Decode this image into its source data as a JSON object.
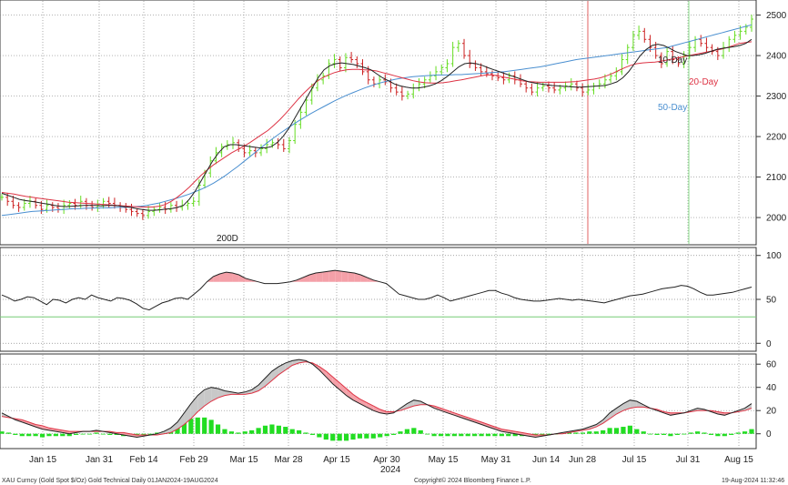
{
  "colors": {
    "up": "#66dd22",
    "down": "#cc2222",
    "ma10": "#222222",
    "ma20": "#dd3344",
    "ma50": "#4a8fd0",
    "rsi_fill": "#f4a0a8",
    "macd_gray": "#c8c8c8",
    "hist": "#22dd22",
    "red_vline": "#e06060",
    "green_vline": "#88dd88",
    "rsi_hline": "#77cc77",
    "grid": "#888888"
  },
  "chart_data": [
    {
      "type": "candlestick",
      "panel": "price",
      "ylim": [
        1935,
        2535
      ],
      "yticks": [
        2000,
        2100,
        2200,
        2300,
        2400,
        2500
      ],
      "labels": {
        "ma10": "10-Day",
        "ma20": "20-Day",
        "ma50": "50-Day",
        "ma200": "200D"
      },
      "x_months_labels": [
        "Jan 15",
        "Jan 31",
        "Feb 14",
        "Feb 29",
        "Mar 15",
        "Mar 28",
        "Apr 15",
        "Apr 30",
        "May 15",
        "May 31",
        "Jun 14",
        "Jun 28",
        "Jul 15",
        "Jul 31",
        "Aug 15"
      ],
      "x_year_label": "2024",
      "close": [
        2050,
        2040,
        2030,
        2025,
        2035,
        2040,
        2030,
        2020,
        2030,
        2025,
        2020,
        2030,
        2035,
        2030,
        2040,
        2030,
        2025,
        2030,
        2040,
        2035,
        2030,
        2025,
        2020,
        2015,
        2010,
        2005,
        2015,
        2020,
        2025,
        2020,
        2030,
        2025,
        2030,
        2035,
        2040,
        2080,
        2110,
        2140,
        2160,
        2175,
        2180,
        2185,
        2170,
        2160,
        2165,
        2160,
        2170,
        2180,
        2185,
        2180,
        2170,
        2190,
        2230,
        2260,
        2290,
        2320,
        2340,
        2350,
        2380,
        2390,
        2370,
        2395,
        2390,
        2380,
        2360,
        2340,
        2330,
        2340,
        2335,
        2320,
        2310,
        2300,
        2305,
        2320,
        2330,
        2340,
        2350,
        2360,
        2370,
        2380,
        2420,
        2430,
        2400,
        2380,
        2370,
        2360,
        2355,
        2350,
        2345,
        2340,
        2350,
        2340,
        2330,
        2320,
        2310,
        2320,
        2325,
        2320,
        2315,
        2320,
        2325,
        2330,
        2320,
        2310,
        2315,
        2325,
        2330,
        2340,
        2350,
        2360,
        2390,
        2420,
        2450,
        2460,
        2440,
        2420,
        2400,
        2380,
        2410,
        2390,
        2380,
        2400,
        2420,
        2440,
        2430,
        2420,
        2410,
        2400,
        2420,
        2440,
        2450,
        2460,
        2470,
        2490
      ],
      "ma10": [
        2060,
        2055,
        2050,
        2045,
        2042,
        2040,
        2038,
        2035,
        2033,
        2030,
        2028,
        2027,
        2028,
        2029,
        2030,
        2030,
        2030,
        2029,
        2030,
        2030,
        2029,
        2027,
        2025,
        2022,
        2020,
        2018,
        2018,
        2019,
        2021,
        2022,
        2025,
        2030,
        2045,
        2065,
        2090,
        2115,
        2140,
        2160,
        2175,
        2180,
        2180,
        2178,
        2176,
        2174,
        2172,
        2172,
        2175,
        2185,
        2200,
        2220,
        2245,
        2270,
        2295,
        2320,
        2345,
        2365,
        2375,
        2380,
        2382,
        2380,
        2378,
        2374,
        2370,
        2365,
        2355,
        2345,
        2338,
        2330,
        2325,
        2322,
        2320,
        2320,
        2322,
        2325,
        2330,
        2338,
        2348,
        2360,
        2372,
        2380,
        2382,
        2380,
        2376,
        2370,
        2365,
        2360,
        2355,
        2350,
        2345,
        2340,
        2335,
        2332,
        2330,
        2328,
        2326,
        2325,
        2324,
        2323,
        2322,
        2322,
        2323,
        2324,
        2325,
        2326,
        2330,
        2335,
        2345,
        2360,
        2380,
        2400,
        2415,
        2425,
        2428,
        2425,
        2418,
        2410,
        2405,
        2400,
        2400,
        2402,
        2405,
        2410,
        2415,
        2418,
        2420,
        2422,
        2425,
        2430,
        2440
      ],
      "ma20": [
        2062,
        2060,
        2058,
        2055,
        2052,
        2050,
        2048,
        2046,
        2044,
        2042,
        2040,
        2038,
        2037,
        2036,
        2035,
        2034,
        2033,
        2032,
        2031,
        2030,
        2029,
        2028,
        2027,
        2026,
        2026,
        2026,
        2028,
        2032,
        2040,
        2050,
        2062,
        2075,
        2090,
        2105,
        2118,
        2130,
        2140,
        2150,
        2160,
        2168,
        2176,
        2185,
        2195,
        2205,
        2215,
        2228,
        2242,
        2258,
        2275,
        2292,
        2308,
        2322,
        2335,
        2345,
        2352,
        2358,
        2362,
        2365,
        2366,
        2366,
        2365,
        2364,
        2362,
        2358,
        2354,
        2350,
        2346,
        2342,
        2338,
        2335,
        2333,
        2332,
        2332,
        2333,
        2335,
        2338,
        2340,
        2343,
        2346,
        2349,
        2352,
        2352,
        2350,
        2347,
        2344,
        2341,
        2338,
        2336,
        2335,
        2334,
        2334,
        2334,
        2334,
        2334,
        2335,
        2336,
        2338,
        2340,
        2342,
        2345,
        2350,
        2356,
        2363,
        2370,
        2376,
        2380,
        2382,
        2383,
        2384,
        2386,
        2389,
        2392,
        2395,
        2398,
        2401,
        2404,
        2407,
        2410,
        2413,
        2416,
        2420,
        2425,
        2430,
        2432,
        2434
      ],
      "ma50": [
        2005,
        2007,
        2009,
        2011,
        2013,
        2015,
        2016,
        2017,
        2018,
        2019,
        2020,
        2021,
        2022,
        2022,
        2023,
        2023,
        2024,
        2024,
        2024,
        2025,
        2025,
        2026,
        2027,
        2028,
        2030,
        2033,
        2036,
        2040,
        2044,
        2048,
        2053,
        2058,
        2064,
        2070,
        2077,
        2085,
        2094,
        2104,
        2115,
        2126,
        2138,
        2150,
        2162,
        2174,
        2186,
        2197,
        2208,
        2218,
        2228,
        2238,
        2247,
        2256,
        2264,
        2272,
        2280,
        2288,
        2295,
        2302,
        2308,
        2314,
        2320,
        2325,
        2330,
        2334,
        2338,
        2341,
        2344,
        2346,
        2348,
        2349,
        2350,
        2351,
        2352,
        2352,
        2352,
        2353,
        2353,
        2354,
        2355,
        2356,
        2357,
        2358,
        2359,
        2360,
        2362,
        2364,
        2366,
        2368,
        2370,
        2372,
        2375,
        2378,
        2381,
        2384,
        2387,
        2390,
        2392,
        2394,
        2396,
        2398,
        2400,
        2402,
        2404,
        2406,
        2408,
        2410,
        2412,
        2414,
        2416,
        2418,
        2420,
        2424,
        2428,
        2432,
        2436,
        2440,
        2444,
        2448,
        2452,
        2456,
        2460,
        2464,
        2468,
        2472,
        2476
      ]
    },
    {
      "type": "line",
      "panel": "rsi",
      "ylim": [
        -8,
        108
      ],
      "yticks": [
        0,
        50,
        100
      ],
      "threshold_line": 30,
      "overbought": 70,
      "values": [
        55,
        52,
        48,
        50,
        53,
        52,
        48,
        44,
        50,
        49,
        46,
        50,
        52,
        50,
        55,
        52,
        50,
        48,
        52,
        51,
        49,
        45,
        40,
        38,
        42,
        46,
        48,
        51,
        52,
        50,
        56,
        62,
        70,
        76,
        79,
        81,
        80,
        78,
        74,
        72,
        70,
        68,
        68,
        68,
        69,
        70,
        72,
        75,
        78,
        80,
        81,
        82,
        83,
        82,
        81,
        80,
        78,
        75,
        72,
        70,
        68,
        62,
        56,
        54,
        52,
        50,
        50,
        52,
        55,
        52,
        48,
        50,
        52,
        54,
        56,
        58,
        60,
        60,
        57,
        55,
        52,
        50,
        49,
        48,
        48,
        49,
        50,
        51,
        50,
        49,
        50,
        49,
        48,
        47,
        46,
        48,
        50,
        52,
        54,
        55,
        56,
        58,
        60,
        62,
        63,
        64,
        66,
        65,
        62,
        58,
        55,
        55,
        56,
        57,
        58,
        60,
        62,
        64
      ]
    },
    {
      "type": "macd",
      "panel": "macd",
      "ylim": [
        -12,
        68
      ],
      "yticks": [
        0,
        20,
        40,
        60
      ],
      "macd": [
        18,
        15,
        12,
        10,
        8,
        6,
        4,
        3,
        2,
        1,
        0,
        1,
        2,
        2,
        3,
        2,
        1,
        0,
        -1,
        -2,
        -3,
        -2,
        -1,
        0,
        2,
        5,
        10,
        18,
        26,
        33,
        38,
        40,
        39,
        37,
        36,
        35,
        36,
        38,
        42,
        48,
        54,
        58,
        61,
        63,
        64,
        63,
        60,
        55,
        49,
        43,
        38,
        33,
        29,
        26,
        23,
        20,
        18,
        17,
        18,
        22,
        26,
        29,
        28,
        25,
        22,
        20,
        18,
        16,
        14,
        12,
        10,
        8,
        6,
        4,
        2,
        1,
        0,
        -1,
        -2,
        -3,
        -2,
        -1,
        0,
        1,
        2,
        3,
        4,
        6,
        8,
        12,
        18,
        22,
        26,
        29,
        28,
        25,
        22,
        20,
        18,
        16,
        17,
        18,
        20,
        22,
        21,
        19,
        17,
        16,
        18,
        20,
        22,
        26
      ],
      "signal": [
        15,
        14,
        13,
        12,
        10,
        8,
        7,
        5,
        4,
        3,
        2,
        2,
        2,
        2,
        2,
        2,
        2,
        1,
        1,
        0,
        -1,
        -1,
        -1,
        -1,
        0,
        1,
        4,
        8,
        13,
        19,
        24,
        28,
        31,
        33,
        34,
        34,
        34,
        35,
        37,
        41,
        46,
        51,
        55,
        59,
        61,
        62,
        61,
        58,
        54,
        49,
        44,
        39,
        34,
        30,
        27,
        24,
        21,
        19,
        19,
        20,
        22,
        24,
        25,
        25,
        24,
        22,
        20,
        18,
        16,
        14,
        12,
        10,
        8,
        6,
        4,
        3,
        2,
        1,
        0,
        -1,
        -1,
        -1,
        0,
        0,
        1,
        2,
        3,
        4,
        6,
        9,
        13,
        17,
        20,
        22,
        23,
        23,
        22,
        21,
        19,
        18,
        18,
        18,
        19,
        20,
        20,
        20,
        19,
        18,
        18,
        19,
        20,
        22
      ],
      "histogram": [
        2,
        1,
        -1,
        -2,
        -2,
        -2,
        -3,
        -2,
        -2,
        -2,
        -2,
        -1,
        0,
        0,
        1,
        0,
        -1,
        -1,
        -2,
        -2,
        -2,
        -1,
        0,
        1,
        2,
        4,
        6,
        10,
        13,
        14,
        14,
        12,
        8,
        4,
        2,
        1,
        2,
        3,
        5,
        7,
        8,
        7,
        6,
        4,
        3,
        1,
        -1,
        -3,
        -5,
        -6,
        -6,
        -6,
        -5,
        -4,
        -4,
        -4,
        -3,
        -2,
        -1,
        2,
        4,
        5,
        3,
        0,
        -2,
        -2,
        -2,
        -2,
        -2,
        -2,
        -2,
        -2,
        -2,
        -2,
        -2,
        -2,
        -2,
        -2,
        -2,
        -2,
        -1,
        0,
        0,
        1,
        1,
        1,
        1,
        2,
        2,
        3,
        5,
        5,
        6,
        7,
        4,
        2,
        0,
        -1,
        -1,
        -2,
        -1,
        0,
        1,
        2,
        1,
        -1,
        -2,
        -2,
        -1,
        1,
        2,
        4
      ]
    }
  ],
  "footer": {
    "left": "XAU Curncy (Gold Spot   $/Oz) Gold Technical  Daily 01JAN2024-19AUG2024",
    "center": "Copyright© 2024 Bloomberg Finance L.P.",
    "right": "19-Aug-2024 11:32:46"
  }
}
